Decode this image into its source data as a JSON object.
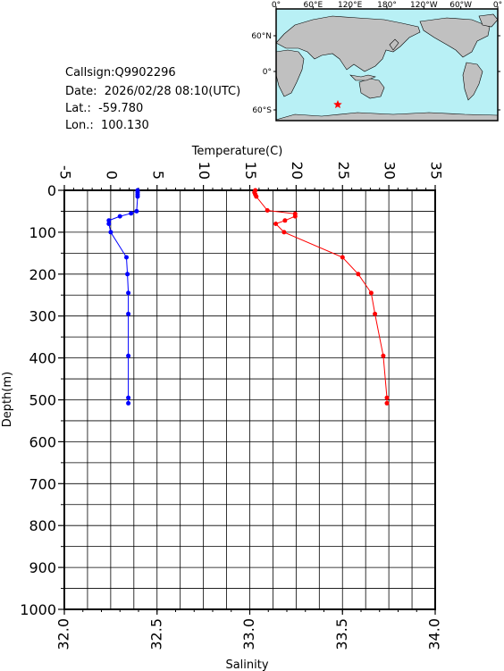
{
  "station": {
    "callsign_label": "Callsign:",
    "callsign": "Q9902296",
    "date_label": "Date:",
    "date": "2026/02/28 08:10(UTC)",
    "lat_label": "Lat.:",
    "lat": "-59.780",
    "lon_label": "Lon.:",
    "lon": "100.130"
  },
  "map": {
    "lon_ticks": [
      "0°",
      "60°E",
      "120°E",
      "180°",
      "120°W",
      "60°W",
      "0°"
    ],
    "lat_ticks": [
      "60°N",
      "0°",
      "60°S"
    ],
    "ocean_color": "#b8f0f5",
    "land_color": "#c0c0c0",
    "marker_color": "#ff0000",
    "marker_lon": 100.13,
    "marker_lat": -59.78
  },
  "chart_data": {
    "type": "line",
    "title": "",
    "ylabel": "Depth(m)",
    "ylim": [
      0,
      1000
    ],
    "y_ticks": [
      "0",
      "100",
      "200",
      "300",
      "400",
      "500",
      "600",
      "700",
      "800",
      "900",
      "1000"
    ],
    "y_inverted": true,
    "grid": true,
    "top_axis": {
      "label": "Temperature(C)",
      "range": [
        -5,
        35
      ],
      "ticks": [
        "-5",
        "0",
        "5",
        "10",
        "15",
        "20",
        "25",
        "30",
        "35"
      ]
    },
    "bottom_axis": {
      "label": "Salinity",
      "range": [
        32.0,
        34.0
      ],
      "ticks": [
        "32.0",
        "32.5",
        "33.0",
        "33.5",
        "34.0"
      ]
    },
    "series": [
      {
        "axis": "temperature",
        "color": "#ff0000",
        "points": [
          {
            "x": 15.6,
            "depth": 0
          },
          {
            "x": 15.5,
            "depth": 5
          },
          {
            "x": 15.6,
            "depth": 10
          },
          {
            "x": 15.7,
            "depth": 15
          },
          {
            "x": 16.9,
            "depth": 48
          },
          {
            "x": 19.9,
            "depth": 56
          },
          {
            "x": 19.9,
            "depth": 62
          },
          {
            "x": 18.8,
            "depth": 72
          },
          {
            "x": 17.8,
            "depth": 80
          },
          {
            "x": 18.7,
            "depth": 100
          },
          {
            "x": 25.0,
            "depth": 160
          },
          {
            "x": 26.7,
            "depth": 200
          },
          {
            "x": 28.1,
            "depth": 245
          },
          {
            "x": 28.5,
            "depth": 295
          },
          {
            "x": 29.4,
            "depth": 395
          },
          {
            "x": 29.8,
            "depth": 495
          },
          {
            "x": 29.8,
            "depth": 508
          }
        ]
      },
      {
        "axis": "salinity",
        "color": "#0000ff",
        "points": [
          {
            "x": 32.395,
            "depth": 0
          },
          {
            "x": 32.395,
            "depth": 5
          },
          {
            "x": 32.395,
            "depth": 10
          },
          {
            "x": 32.395,
            "depth": 15
          },
          {
            "x": 32.39,
            "depth": 50
          },
          {
            "x": 32.36,
            "depth": 55
          },
          {
            "x": 32.3,
            "depth": 62
          },
          {
            "x": 32.24,
            "depth": 72
          },
          {
            "x": 32.24,
            "depth": 80
          },
          {
            "x": 32.25,
            "depth": 100
          },
          {
            "x": 32.335,
            "depth": 160
          },
          {
            "x": 32.34,
            "depth": 200
          },
          {
            "x": 32.345,
            "depth": 245
          },
          {
            "x": 32.345,
            "depth": 295
          },
          {
            "x": 32.345,
            "depth": 395
          },
          {
            "x": 32.345,
            "depth": 495
          },
          {
            "x": 32.345,
            "depth": 508
          }
        ]
      }
    ]
  }
}
